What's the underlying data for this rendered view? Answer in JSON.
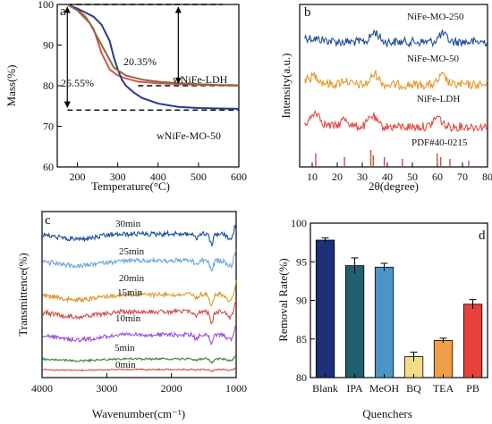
{
  "chart_data": [
    {
      "panel": "a",
      "type": "line",
      "xlabel": "Temperature(°C)",
      "ylabel": "Mass(%)",
      "xlim": [
        150,
        600
      ],
      "ylim": [
        60,
        100
      ],
      "xticks": [
        200,
        300,
        400,
        500,
        600
      ],
      "yticks": [
        60,
        70,
        80,
        90,
        100
      ],
      "series": [
        {
          "name": "wNiFe-LDH",
          "color": "#d05a50",
          "x": [
            175,
            200,
            220,
            240,
            260,
            280,
            300,
            320,
            350,
            400,
            450,
            500,
            550,
            600
          ],
          "y": [
            100,
            98.8,
            97,
            94,
            88,
            84,
            82.5,
            81.8,
            81,
            80.6,
            80.4,
            80.2,
            80.1,
            80
          ]
        },
        {
          "name": "wNiFe-MO-50",
          "color": "#2b3a8f",
          "x": [
            175,
            200,
            220,
            240,
            260,
            280,
            290,
            300,
            310,
            320,
            340,
            360,
            400,
            450,
            500,
            550,
            600
          ],
          "y": [
            100,
            99,
            98,
            97,
            95,
            91,
            87,
            84,
            81.5,
            80,
            78.3,
            77,
            75.6,
            74.8,
            74.5,
            74.4,
            74.3
          ]
        },
        {
          "name": "",
          "color": "#8a6a40",
          "x": [
            175,
            200,
            230,
            260,
            290,
            320,
            360,
            400,
            450,
            500,
            550,
            600
          ],
          "y": [
            100,
            98.5,
            95.5,
            90,
            84.5,
            82.5,
            81.5,
            81,
            80.6,
            80.4,
            80.2,
            80.1
          ]
        }
      ],
      "annotations": [
        "20.35%",
        "25.55%",
        "wNiFe-LDH",
        "wNiFe-MO-50"
      ],
      "reference_lines": [
        100,
        80,
        74
      ]
    },
    {
      "panel": "b",
      "type": "line",
      "xlabel": "2θ(degree)",
      "ylabel": "Intensity(a.u.)",
      "xlim": [
        5,
        80
      ],
      "xticks": [
        10,
        20,
        30,
        40,
        50,
        60,
        70,
        80
      ],
      "series": [
        {
          "name": "NiFe-MO-250",
          "color": "#1f4f9a",
          "peaks": [
            [
              35,
              0.5
            ],
            [
              62,
              0.4
            ]
          ],
          "offset": 3
        },
        {
          "name": "NiFe-MO-50",
          "color": "#e39a2c",
          "peaks": [
            [
              11,
              0.3
            ],
            [
              23,
              0.25
            ],
            [
              35,
              0.55
            ],
            [
              62,
              0.45
            ]
          ],
          "offset": 2
        },
        {
          "name": "NiFe-LDH",
          "color": "#e0504a",
          "peaks": [
            [
              11.5,
              0.6
            ],
            [
              23,
              0.4
            ],
            [
              34,
              0.55
            ],
            [
              60,
              0.5
            ]
          ],
          "offset": 1
        }
      ],
      "reference": {
        "name": "PDF#40-0215",
        "color": "#c0503f",
        "positions": [
          11.4,
          22.9,
          33.4,
          34.4,
          38.8,
          46,
          59.9,
          61.3,
          65,
          72.5
        ]
      }
    },
    {
      "panel": "c",
      "type": "line",
      "xlabel": "Wavenumber(cm⁻¹)",
      "ylabel": "Transmittence(%)",
      "xlim": [
        4000,
        1000
      ],
      "xticks": [
        4000,
        3000,
        2000,
        1000
      ],
      "series": [
        {
          "name": "30min",
          "color": "#1f4f9a"
        },
        {
          "name": "25min",
          "color": "#6fa5d6"
        },
        {
          "name": "20min",
          "color": "#d99a2b"
        },
        {
          "name": "15min",
          "color": "#d0504a"
        },
        {
          "name": "10min",
          "color": "#9b4fd6"
        },
        {
          "name": "5min",
          "color": "#2d8a2d"
        },
        {
          "name": "0min",
          "color": "#c0504a"
        }
      ]
    },
    {
      "panel": "d",
      "type": "bar",
      "xlabel": "Quenchers",
      "ylabel": "Removal Rate(%)",
      "ylim": [
        80,
        100
      ],
      "yticks": [
        80,
        85,
        90,
        95,
        100
      ],
      "categories": [
        "Blank",
        "IPA",
        "MeOH",
        "BQ",
        "TEA",
        "PB"
      ],
      "values": [
        97.8,
        94.5,
        94.3,
        82.7,
        84.8,
        89.5
      ],
      "errors": [
        0.3,
        1.0,
        0.5,
        0.6,
        0.3,
        0.6
      ],
      "colors": [
        "#1c2f78",
        "#22606e",
        "#4c95c8",
        "#f3dc8a",
        "#f19f48",
        "#e8413c"
      ]
    }
  ]
}
